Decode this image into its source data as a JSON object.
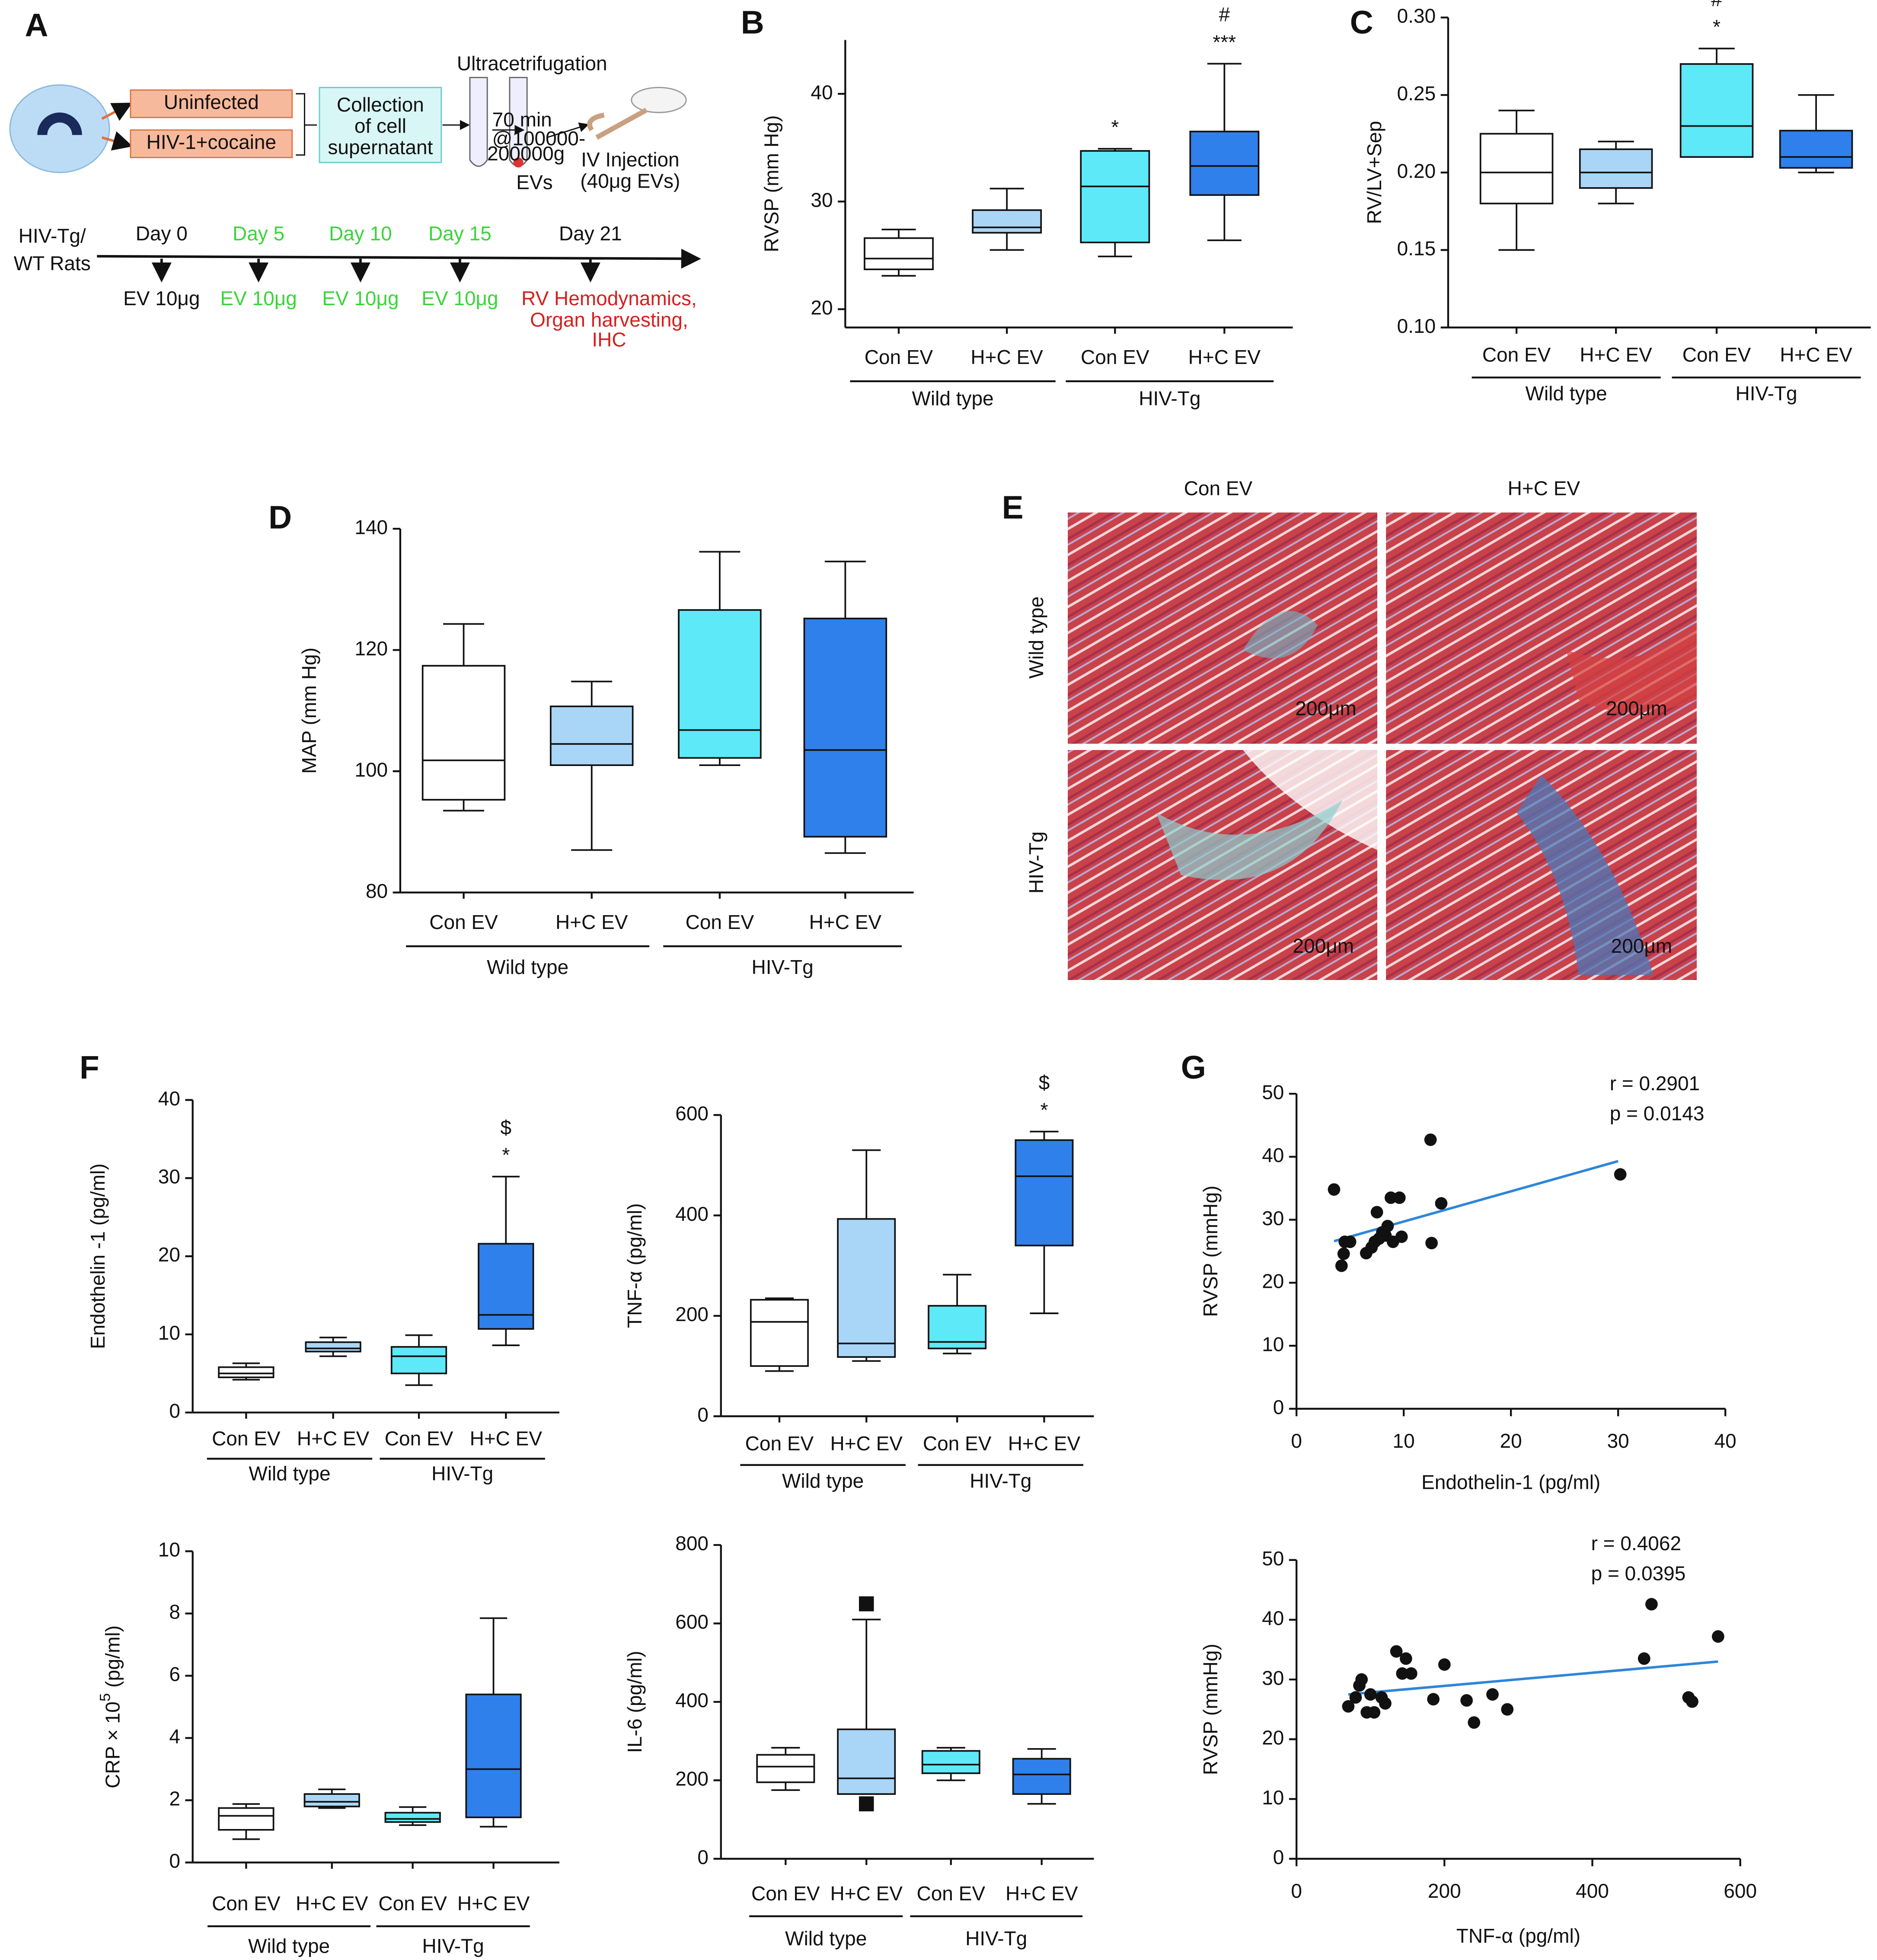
{
  "panel_labels": [
    "A",
    "B",
    "C",
    "D",
    "E",
    "F",
    "G"
  ],
  "schematic": {
    "conditions": [
      "Uninfected",
      "HIV-1+cocaine"
    ],
    "collection": [
      "Collection",
      "of cell",
      "supernatant"
    ],
    "ultracentrifugation": "Ultracetrifugation",
    "spin": [
      "70 min",
      "@100000-",
      "200000g"
    ],
    "product": "EVs",
    "injection": [
      "IV Injection",
      "(40μg EVs)"
    ],
    "subjects": [
      "HIV-Tg/",
      "WT Rats"
    ],
    "timeline": [
      {
        "day": "Day 0",
        "dose": "EV 10μg",
        "color": "#111111"
      },
      {
        "day": "Day 5",
        "dose": "EV 10μg",
        "color": "#3ad43a"
      },
      {
        "day": "Day 10",
        "dose": "EV 10μg",
        "color": "#3ad43a"
      },
      {
        "day": "Day 15",
        "dose": "EV 10μg",
        "color": "#3ad43a"
      },
      {
        "day": "Day 21",
        "dose": "RV Hemodynamics,",
        "color": "#d42020"
      }
    ],
    "endpoints": [
      "Organ harvesting,",
      "IHC"
    ]
  },
  "histology": {
    "columns": [
      "Con EV",
      "H+C EV"
    ],
    "rows": [
      "Wild type",
      "HIV-Tg"
    ],
    "scale_bars": [
      "200μm",
      "200μm",
      "200μm",
      "200μm"
    ]
  },
  "chart_data": [
    {
      "type": "box",
      "ylabel": "RVSP (mm Hg)",
      "ylim": [
        18.3,
        45
      ],
      "yticks": [
        20,
        30,
        40
      ],
      "categories": [
        "Con EV",
        "H+C EV",
        "Con EV",
        "H+C EV"
      ],
      "groups": [
        "Wild type",
        "HIV-Tg"
      ],
      "boxes": [
        {
          "min": 23.1,
          "q1": 23.7,
          "median": 24.7,
          "q3": 26.6,
          "max": 27.4,
          "color": "#ffffff"
        },
        {
          "min": 25.5,
          "q1": 27.1,
          "median": 27.6,
          "q3": 29.2,
          "max": 31.2,
          "color": "#a9d5f7"
        },
        {
          "min": 24.9,
          "q1": 26.2,
          "median": 31.4,
          "q3": 34.7,
          "max": 34.9,
          "color": "#5de9f7"
        },
        {
          "min": 26.4,
          "q1": 30.6,
          "median": 33.3,
          "q3": 36.5,
          "max": 42.8,
          "color": "#2f80ea"
        }
      ],
      "annotations": [
        [],
        [],
        [
          "*"
        ],
        [
          "***",
          "#"
        ]
      ]
    },
    {
      "type": "box",
      "ylabel": "RV/LV+Sep",
      "ylim": [
        0.1,
        0.3
      ],
      "yticks": [
        {
          "value": 0.1,
          "label": "0.10"
        },
        {
          "value": 0.15,
          "label": "0.15"
        },
        {
          "value": 0.2,
          "label": "0.20"
        },
        {
          "value": 0.25,
          "label": "0.25"
        },
        {
          "value": 0.3,
          "label": "0.30"
        }
      ],
      "categories": [
        "Con EV",
        "H+C EV",
        "Con EV",
        "H+C EV"
      ],
      "groups": [
        "Wild type",
        "HIV-Tg"
      ],
      "boxes": [
        {
          "min": 0.15,
          "q1": 0.18,
          "median": 0.2,
          "q3": 0.225,
          "max": 0.24,
          "color": "#ffffff"
        },
        {
          "min": 0.18,
          "q1": 0.19,
          "median": 0.2,
          "q3": 0.215,
          "max": 0.22,
          "color": "#a9d5f7"
        },
        {
          "min": 0.21,
          "q1": 0.21,
          "median": 0.23,
          "q3": 0.27,
          "max": 0.28,
          "color": "#5de9f7"
        },
        {
          "min": 0.2,
          "q1": 0.203,
          "median": 0.21,
          "q3": 0.227,
          "max": 0.25,
          "color": "#2f80ea"
        }
      ],
      "annotations": [
        [],
        [],
        [
          "*",
          "#"
        ],
        []
      ]
    },
    {
      "type": "box",
      "ylabel": "MAP (mm Hg)",
      "ylim": [
        80,
        140
      ],
      "yticks": [
        80,
        100,
        120,
        140
      ],
      "categories": [
        "Con EV",
        "H+C EV",
        "Con EV",
        "H+C EV"
      ],
      "groups": [
        "Wild type",
        "HIV-Tg"
      ],
      "boxes": [
        {
          "min": 93.5,
          "q1": 95.3,
          "median": 101.8,
          "q3": 117.4,
          "max": 124.3,
          "color": "#ffffff"
        },
        {
          "min": 87,
          "q1": 101,
          "median": 104.5,
          "q3": 110.7,
          "max": 114.8,
          "color": "#a9d5f7"
        },
        {
          "min": 101,
          "q1": 102.2,
          "median": 106.8,
          "q3": 126.6,
          "max": 136.2,
          "color": "#5de9f7"
        },
        {
          "min": 86.5,
          "q1": 89.2,
          "median": 103.5,
          "q3": 125.2,
          "max": 134.6,
          "color": "#2f80ea"
        }
      ],
      "annotations": [
        [],
        [],
        [],
        []
      ]
    },
    {
      "type": "box",
      "ylabel": "Endothelin -1 (pg/ml)",
      "ylim": [
        0,
        40
      ],
      "yticks": [
        0,
        10,
        20,
        30,
        40
      ],
      "categories": [
        "Con EV",
        "H+C EV",
        "Con EV",
        "H+C EV"
      ],
      "groups": [
        "Wild type",
        "HIV-Tg"
      ],
      "boxes": [
        {
          "min": 4.2,
          "q1": 4.5,
          "median": 5.0,
          "q3": 5.8,
          "max": 6.3,
          "color": "#ffffff"
        },
        {
          "min": 7.2,
          "q1": 7.8,
          "median": 8.2,
          "q3": 9.0,
          "max": 9.6,
          "color": "#a9d5f7"
        },
        {
          "min": 3.5,
          "q1": 5.0,
          "median": 7.2,
          "q3": 8.4,
          "max": 9.9,
          "color": "#5de9f7"
        },
        {
          "min": 8.6,
          "q1": 10.7,
          "median": 12.5,
          "q3": 21.6,
          "max": 30.2,
          "color": "#2f80ea"
        }
      ],
      "annotations": [
        [],
        [],
        [],
        [
          "*",
          "$"
        ]
      ]
    },
    {
      "type": "box",
      "ylabel": "TNF-α (pg/ml)",
      "ylim": [
        0,
        600
      ],
      "yticks": [
        0,
        200,
        400,
        600
      ],
      "categories": [
        "Con EV",
        "H+C EV",
        "Con EV",
        "H+C EV"
      ],
      "groups": [
        "Wild type",
        "HIV-Tg"
      ],
      "boxes": [
        {
          "min": 90,
          "q1": 100,
          "median": 188,
          "q3": 232,
          "max": 235,
          "color": "#ffffff"
        },
        {
          "min": 110,
          "q1": 118,
          "median": 145,
          "q3": 393,
          "max": 530,
          "color": "#a9d5f7"
        },
        {
          "min": 125,
          "q1": 135,
          "median": 148,
          "q3": 220,
          "max": 282,
          "color": "#5de9f7"
        },
        {
          "min": 205,
          "q1": 340,
          "median": 478,
          "q3": 550,
          "max": 567,
          "color": "#2f80ea"
        }
      ],
      "annotations": [
        [],
        [],
        [],
        [
          "*",
          "$"
        ]
      ]
    },
    {
      "type": "box",
      "ylabel": "CRP × 10",
      "ylabel_sup": "5",
      "ylabel_unit": " (pg/ml)",
      "ylim": [
        0,
        10
      ],
      "yticks": [
        0,
        2,
        4,
        6,
        8,
        10
      ],
      "categories": [
        "Con EV",
        "H+C EV",
        "Con EV",
        "H+C EV"
      ],
      "groups": [
        "Wild type",
        "HIV-Tg"
      ],
      "boxes": [
        {
          "min": 0.75,
          "q1": 1.05,
          "median": 1.5,
          "q3": 1.75,
          "max": 1.88,
          "color": "#ffffff"
        },
        {
          "min": 1.75,
          "q1": 1.8,
          "median": 1.95,
          "q3": 2.2,
          "max": 2.35,
          "color": "#a9d5f7"
        },
        {
          "min": 1.2,
          "q1": 1.3,
          "median": 1.4,
          "q3": 1.6,
          "max": 1.78,
          "color": "#5de9f7"
        },
        {
          "min": 1.15,
          "q1": 1.45,
          "median": 3.0,
          "q3": 5.4,
          "max": 7.85,
          "color": "#2f80ea"
        }
      ],
      "annotations": [
        [],
        [],
        [],
        []
      ]
    },
    {
      "type": "box",
      "ylabel": "IL-6 (pg/ml)",
      "ylim": [
        0,
        800
      ],
      "yticks": [
        0,
        200,
        400,
        600,
        800
      ],
      "categories": [
        "Con EV",
        "H+C EV",
        "Con EV",
        "H+C EV"
      ],
      "groups": [
        "Wild type",
        "HIV-Tg"
      ],
      "boxes": [
        {
          "min": 175,
          "q1": 195,
          "median": 235,
          "q3": 265,
          "max": 283,
          "color": "#ffffff"
        },
        {
          "min": 165,
          "q1": 165,
          "median": 205,
          "q3": 330,
          "max": 610,
          "color": "#a9d5f7"
        },
        {
          "min": 200,
          "q1": 218,
          "median": 240,
          "q3": 275,
          "max": 283,
          "color": "#5de9f7"
        },
        {
          "min": 140,
          "q1": 165,
          "median": 215,
          "q3": 255,
          "max": 280,
          "color": "#2f80ea"
        }
      ],
      "outliers": [
        [],
        [
          650,
          140
        ],
        [],
        []
      ],
      "annotations": [
        [],
        [],
        [],
        []
      ]
    },
    {
      "type": "scatter",
      "xlabel": "Endothelin-1 (pg/ml)",
      "ylabel": "RVSP (mmHg)",
      "xlim": [
        0,
        40
      ],
      "xticks": [
        0,
        10,
        20,
        30,
        40
      ],
      "ylim": [
        0,
        50
      ],
      "yticks": [
        0,
        10,
        20,
        30,
        40,
        50
      ],
      "color": "#111111",
      "line_color": "#2f86d8",
      "x": [
        3.5,
        4.2,
        4.4,
        4.5,
        5.0,
        6.5,
        7.0,
        7.3,
        7.5,
        7.7,
        8.0,
        8.3,
        8.5,
        8.8,
        9.0,
        9.6,
        9.8,
        12.5,
        12.6,
        13.5,
        30.2
      ],
      "y": [
        34.8,
        22.7,
        24.6,
        26.5,
        26.5,
        24.7,
        25.6,
        26.5,
        31.2,
        27.0,
        28.0,
        27.5,
        29.0,
        33.5,
        26.5,
        33.5,
        27.3,
        42.7,
        26.3,
        32.6,
        37.2
      ],
      "trendline": {
        "x": [
          3.5,
          30
        ],
        "y": [
          26.6,
          39.3
        ]
      },
      "stats": [
        "r = 0.2901",
        "p = 0.0143"
      ]
    },
    {
      "type": "scatter",
      "xlabel": "TNF-α (pg/ml)",
      "ylabel": "RVSP (mmHg)",
      "xlim": [
        0,
        600
      ],
      "xticks": [
        0,
        200,
        400,
        600
      ],
      "ylim": [
        0,
        50
      ],
      "yticks": [
        0,
        10,
        20,
        30,
        40,
        50
      ],
      "color": "#111111",
      "line_color": "#2f86d8",
      "x": [
        70,
        80,
        85,
        88,
        95,
        100,
        105,
        115,
        120,
        135,
        143,
        148,
        155,
        185,
        200,
        230,
        240,
        265,
        285,
        470,
        480,
        530,
        535,
        570
      ],
      "y": [
        25.5,
        27,
        29,
        30,
        24.5,
        27.5,
        24.5,
        27,
        26,
        34.7,
        31,
        33.5,
        31,
        26.7,
        32.5,
        26.5,
        22.8,
        27.5,
        25,
        33.5,
        42.6,
        27,
        26.3,
        37.2
      ],
      "trendline": {
        "x": [
          70,
          570
        ],
        "y": [
          27.5,
          33
        ]
      },
      "stats": [
        "r = 0.4062",
        "p = 0.0395"
      ]
    }
  ]
}
